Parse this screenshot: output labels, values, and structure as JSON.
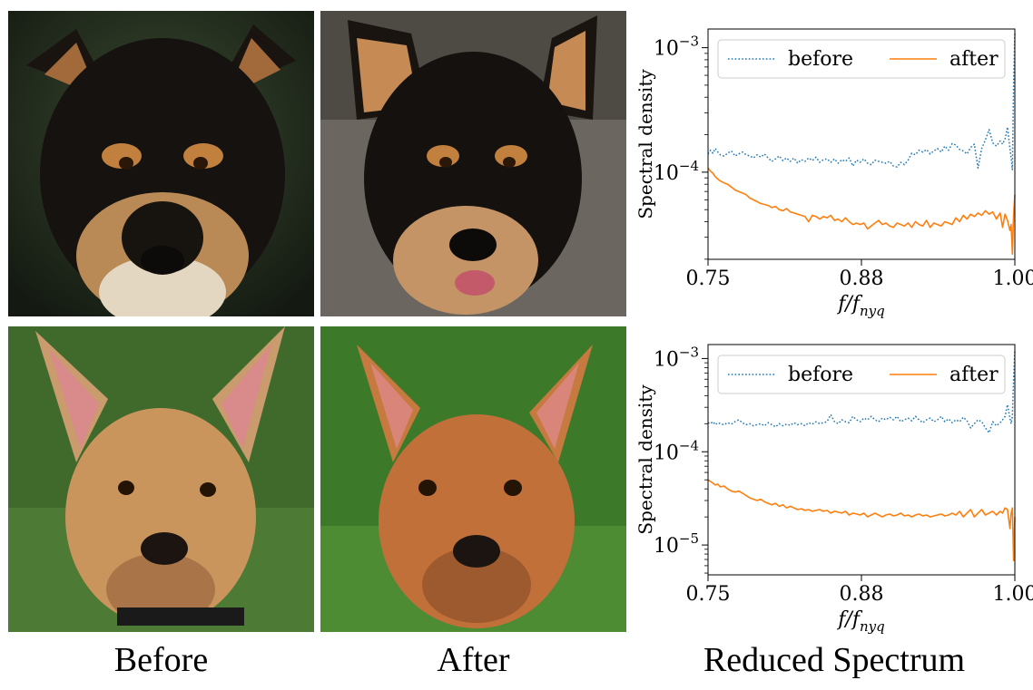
{
  "captions": {
    "before": "Before",
    "after": "After",
    "spectrum": "Reduced Spectrum"
  },
  "photos": [
    {
      "role": "before",
      "subject": "black-and-tan dog face, dark background"
    },
    {
      "role": "after",
      "subject": "black-and-tan dog face, generated, grey background"
    },
    {
      "role": "before",
      "subject": "tan dog with large ears on grass"
    },
    {
      "role": "after",
      "subject": "tan dog with large ears on grass, generated"
    }
  ],
  "colors": {
    "before_series": "#1f77b4",
    "after_series": "#ff7f0e"
  },
  "chart_data": [
    {
      "type": "line",
      "xlabel": "f/f_nyq",
      "ylabel": "Spectral density",
      "yscale": "log",
      "xlim": [
        0.75,
        1.0
      ],
      "ylim_log10": [
        -4.7,
        -2.85
      ],
      "xticks": [
        {
          "v": 0.75,
          "label": "0.75"
        },
        {
          "v": 0.875,
          "label": "0.88"
        },
        {
          "v": 1.0,
          "label": "1.00"
        }
      ],
      "yticks": [
        {
          "exp": -4,
          "label": "10",
          "sup": "−4"
        },
        {
          "exp": -3,
          "label": "10",
          "sup": "−3"
        }
      ],
      "legend": {
        "placement": "top"
      },
      "series": [
        {
          "name": "before",
          "style": "dotted",
          "color": "#1f77b4",
          "x": [
            0.75,
            0.752,
            0.754,
            0.756,
            0.758,
            0.76,
            0.763,
            0.766,
            0.769,
            0.772,
            0.775,
            0.778,
            0.781,
            0.784,
            0.787,
            0.79,
            0.793,
            0.796,
            0.799,
            0.802,
            0.805,
            0.808,
            0.811,
            0.814,
            0.817,
            0.82,
            0.823,
            0.826,
            0.829,
            0.832,
            0.835,
            0.838,
            0.841,
            0.844,
            0.847,
            0.85,
            0.853,
            0.856,
            0.859,
            0.862,
            0.865,
            0.868,
            0.871,
            0.874,
            0.877,
            0.88,
            0.883,
            0.886,
            0.889,
            0.892,
            0.895,
            0.898,
            0.901,
            0.904,
            0.907,
            0.91,
            0.913,
            0.916,
            0.919,
            0.922,
            0.925,
            0.928,
            0.931,
            0.934,
            0.937,
            0.94,
            0.943,
            0.946,
            0.949,
            0.952,
            0.955,
            0.958,
            0.961,
            0.964,
            0.967,
            0.97,
            0.973,
            0.976,
            0.979,
            0.982,
            0.985,
            0.988,
            0.99,
            0.992,
            0.994,
            0.996,
            0.997,
            0.998,
            0.999,
            1.0
          ],
          "y": [
            0.00014,
            0.00015,
            0.000142,
            0.000155,
            0.000145,
            0.000138,
            0.000135,
            0.000142,
            0.000148,
            0.000135,
            0.00014,
            0.000145,
            0.000138,
            0.000135,
            0.00013,
            0.000138,
            0.000132,
            0.00014,
            0.00013,
            0.000122,
            0.000128,
            0.000135,
            0.000124,
            0.00013,
            0.000122,
            0.00013,
            0.000118,
            0.000126,
            0.000122,
            0.00013,
            0.000124,
            0.000132,
            0.00012,
            0.000126,
            0.000128,
            0.00012,
            0.000128,
            0.000118,
            0.000126,
            0.000122,
            0.00013,
            0.000112,
            0.000125,
            0.00012,
            0.000128,
            0.000118,
            0.000115,
            0.000125,
            0.000122,
            0.00012,
            0.000118,
            0.000122,
            0.000112,
            0.00011,
            0.00012,
            0.000115,
            0.000125,
            0.000142,
            0.000138,
            0.00015,
            0.000145,
            0.000152,
            0.00014,
            0.000148,
            0.000155,
            0.000145,
            0.000162,
            0.00015,
            0.00017,
            0.000165,
            0.000152,
            0.000148,
            0.00014,
            0.000158,
            0.000168,
            0.000108,
            0.000155,
            0.000182,
            0.00022,
            0.000172,
            0.000162,
            0.000178,
            0.000168,
            0.000185,
            0.00023,
            0.000155,
            0.00013,
            0.000105,
            0.0005,
            0.0013
          ]
        },
        {
          "name": "after",
          "style": "solid",
          "color": "#ff7f0e",
          "x": [
            0.75,
            0.752,
            0.754,
            0.756,
            0.758,
            0.76,
            0.763,
            0.766,
            0.769,
            0.772,
            0.775,
            0.778,
            0.781,
            0.784,
            0.787,
            0.79,
            0.793,
            0.796,
            0.799,
            0.802,
            0.805,
            0.808,
            0.811,
            0.814,
            0.817,
            0.82,
            0.823,
            0.826,
            0.829,
            0.832,
            0.835,
            0.838,
            0.841,
            0.844,
            0.847,
            0.85,
            0.853,
            0.856,
            0.859,
            0.862,
            0.865,
            0.868,
            0.871,
            0.874,
            0.877,
            0.88,
            0.883,
            0.886,
            0.889,
            0.892,
            0.895,
            0.898,
            0.901,
            0.904,
            0.907,
            0.91,
            0.913,
            0.916,
            0.919,
            0.922,
            0.925,
            0.928,
            0.931,
            0.934,
            0.937,
            0.94,
            0.943,
            0.946,
            0.949,
            0.952,
            0.955,
            0.958,
            0.961,
            0.964,
            0.967,
            0.97,
            0.973,
            0.976,
            0.979,
            0.982,
            0.985,
            0.988,
            0.99,
            0.992,
            0.994,
            0.996,
            0.997,
            0.998,
            0.999,
            1.0
          ],
          "y": [
            0.000108,
            0.000102,
            9.8e-05,
            9.2e-05,
            8.8e-05,
            8.5e-05,
            8.2e-05,
            8e-05,
            7.6e-05,
            7.2e-05,
            7e-05,
            6.8e-05,
            6.6e-05,
            6.2e-05,
            6e-05,
            5.8e-05,
            5.6e-05,
            5.5e-05,
            5.4e-05,
            5.2e-05,
            5.3e-05,
            5e-05,
            4.9e-05,
            5.1e-05,
            4.8e-05,
            4.7e-05,
            4.6e-05,
            4.5e-05,
            4.4e-05,
            4e-05,
            4.5e-05,
            4.4e-05,
            4.2e-05,
            4.4e-05,
            4.3e-05,
            4.5e-05,
            4.1e-05,
            4.2e-05,
            4e-05,
            4.3e-05,
            4e-05,
            3.8e-05,
            3.9e-05,
            3.8e-05,
            3.9e-05,
            3.5e-05,
            3.7e-05,
            3.9e-05,
            4.1e-05,
            3.8e-05,
            3.9e-05,
            3.7e-05,
            3.6e-05,
            3.9e-05,
            3.8e-05,
            3.7e-05,
            3.9e-05,
            3.6e-05,
            4e-05,
            3.8e-05,
            3.7e-05,
            4.1e-05,
            3.6e-05,
            3.9e-05,
            3.8e-05,
            3.7e-05,
            4e-05,
            3.9e-05,
            3.8e-05,
            4.3e-05,
            4e-05,
            4.5e-05,
            4.2e-05,
            4.6e-05,
            4.4e-05,
            4.7e-05,
            4.5e-05,
            4.9e-05,
            4.6e-05,
            4.8e-05,
            4.2e-05,
            4.7e-05,
            3.6e-05,
            4.6e-05,
            4.1e-05,
            3.4e-05,
            3.8e-05,
            2.2e-05,
            4.5e-05,
            6.6e-05
          ]
        }
      ]
    },
    {
      "type": "line",
      "xlabel": "f/f_nyq",
      "ylabel": "Spectral density",
      "yscale": "log",
      "xlim": [
        0.75,
        1.0
      ],
      "ylim_log10": [
        -5.32,
        -2.85
      ],
      "xticks": [
        {
          "v": 0.75,
          "label": "0.75"
        },
        {
          "v": 0.875,
          "label": "0.88"
        },
        {
          "v": 1.0,
          "label": "1.00"
        }
      ],
      "yticks": [
        {
          "exp": -5,
          "label": "10",
          "sup": "−5"
        },
        {
          "exp": -4,
          "label": "10",
          "sup": "−4"
        },
        {
          "exp": -3,
          "label": "10",
          "sup": "−3"
        }
      ],
      "legend": {
        "placement": "top"
      },
      "series": [
        {
          "name": "before",
          "style": "dotted",
          "color": "#1f77b4",
          "x": [
            0.75,
            0.752,
            0.754,
            0.756,
            0.758,
            0.76,
            0.763,
            0.766,
            0.769,
            0.772,
            0.775,
            0.778,
            0.781,
            0.784,
            0.787,
            0.79,
            0.793,
            0.796,
            0.799,
            0.802,
            0.805,
            0.808,
            0.811,
            0.814,
            0.817,
            0.82,
            0.823,
            0.826,
            0.829,
            0.832,
            0.835,
            0.838,
            0.841,
            0.844,
            0.847,
            0.85,
            0.853,
            0.856,
            0.859,
            0.862,
            0.865,
            0.868,
            0.871,
            0.874,
            0.877,
            0.88,
            0.883,
            0.886,
            0.889,
            0.892,
            0.895,
            0.898,
            0.901,
            0.904,
            0.907,
            0.91,
            0.913,
            0.916,
            0.919,
            0.922,
            0.925,
            0.928,
            0.931,
            0.934,
            0.937,
            0.94,
            0.943,
            0.946,
            0.949,
            0.952,
            0.955,
            0.958,
            0.961,
            0.964,
            0.967,
            0.97,
            0.973,
            0.976,
            0.979,
            0.982,
            0.985,
            0.988,
            0.99,
            0.992,
            0.994,
            0.996,
            0.997,
            0.998,
            0.999,
            1.0
          ],
          "y": [
            0.000205,
            0.0002,
            0.00021,
            0.000195,
            0.000205,
            0.0002,
            0.000195,
            0.000205,
            0.000198,
            0.00021,
            0.00022,
            0.000205,
            0.000195,
            0.0002,
            0.00019,
            0.000195,
            0.0002,
            0.00019,
            0.000205,
            0.000195,
            0.000185,
            0.0002,
            0.00019,
            0.000198,
            0.000192,
            0.000205,
            0.000195,
            0.0002,
            0.00019,
            0.000205,
            0.000198,
            0.00021,
            0.0002,
            0.000205,
            0.00021,
            0.00025,
            0.00021,
            0.0002,
            0.00022,
            0.00021,
            0.000205,
            0.00024,
            0.00022,
            0.00021,
            0.00023,
            0.00022,
            0.00024,
            0.00022,
            0.00021,
            0.00023,
            0.00022,
            0.000235,
            0.00022,
            0.00024,
            0.00021,
            0.00022,
            0.00023,
            0.000215,
            0.00024,
            0.00022,
            0.000205,
            0.00022,
            0.00023,
            0.00021,
            0.00022,
            0.00024,
            0.00021,
            0.000225,
            0.000205,
            0.00022,
            0.00021,
            0.000235,
            0.000215,
            0.00018,
            0.0002,
            0.00022,
            0.00021,
            0.00018,
            0.00016,
            0.00021,
            0.00019,
            0.000205,
            0.00022,
            0.00024,
            0.00032,
            0.00023,
            0.0002,
            0.00024,
            0.0006,
            0.00125
          ]
        },
        {
          "name": "after",
          "style": "solid",
          "color": "#ff7f0e",
          "x": [
            0.75,
            0.752,
            0.754,
            0.756,
            0.758,
            0.76,
            0.763,
            0.766,
            0.769,
            0.772,
            0.775,
            0.778,
            0.781,
            0.784,
            0.787,
            0.79,
            0.793,
            0.796,
            0.799,
            0.802,
            0.805,
            0.808,
            0.811,
            0.814,
            0.817,
            0.82,
            0.823,
            0.826,
            0.829,
            0.832,
            0.835,
            0.838,
            0.841,
            0.844,
            0.847,
            0.85,
            0.853,
            0.856,
            0.859,
            0.862,
            0.865,
            0.868,
            0.871,
            0.874,
            0.877,
            0.88,
            0.883,
            0.886,
            0.889,
            0.892,
            0.895,
            0.898,
            0.901,
            0.904,
            0.907,
            0.91,
            0.913,
            0.916,
            0.919,
            0.922,
            0.925,
            0.928,
            0.931,
            0.934,
            0.937,
            0.94,
            0.943,
            0.946,
            0.949,
            0.952,
            0.955,
            0.958,
            0.961,
            0.964,
            0.967,
            0.97,
            0.973,
            0.976,
            0.979,
            0.982,
            0.985,
            0.988,
            0.99,
            0.992,
            0.994,
            0.996,
            0.997,
            0.998,
            0.999,
            1.0
          ],
          "y": [
            5e-05,
            4.8e-05,
            4.6e-05,
            4.4e-05,
            4.5e-05,
            4.2e-05,
            4.3e-05,
            4e-05,
            3.8e-05,
            3.7e-05,
            3.8e-05,
            3.6e-05,
            3.4e-05,
            3.2e-05,
            3.1e-05,
            3e-05,
            3.1e-05,
            2.9e-05,
            2.8e-05,
            2.7e-05,
            2.8e-05,
            2.6e-05,
            2.7e-05,
            2.5e-05,
            2.6e-05,
            2.5e-05,
            2.4e-05,
            2.45e-05,
            2.35e-05,
            2.4e-05,
            2.3e-05,
            2.35e-05,
            2.4e-05,
            2.3e-05,
            2.35e-05,
            2.2e-05,
            2.3e-05,
            2.25e-05,
            2.2e-05,
            2.3e-05,
            2.1e-05,
            2.2e-05,
            2.15e-05,
            2.1e-05,
            2.2e-05,
            2e-05,
            2.1e-05,
            2.2e-05,
            2.1e-05,
            2e-05,
            2.1e-05,
            2.15e-05,
            2.05e-05,
            2.1e-05,
            2.2e-05,
            2.05e-05,
            2.1e-05,
            2e-05,
            2.1e-05,
            2.15e-05,
            2.05e-05,
            2.1e-05,
            2e-05,
            2.05e-05,
            2.1e-05,
            2.15e-05,
            2.05e-05,
            2.1e-05,
            2.2e-05,
            2.1e-05,
            2.3e-05,
            2e-05,
            2.2e-05,
            2.4e-05,
            2e-05,
            2.2e-05,
            2.4e-05,
            2.1e-05,
            2.2e-05,
            2.3e-05,
            2.1e-05,
            2.3e-05,
            2.2e-05,
            2.5e-05,
            2.4e-05,
            1.5e-05,
            2.2e-05,
            2.5e-05,
            6.8e-06,
            2e-05
          ]
        }
      ]
    }
  ]
}
